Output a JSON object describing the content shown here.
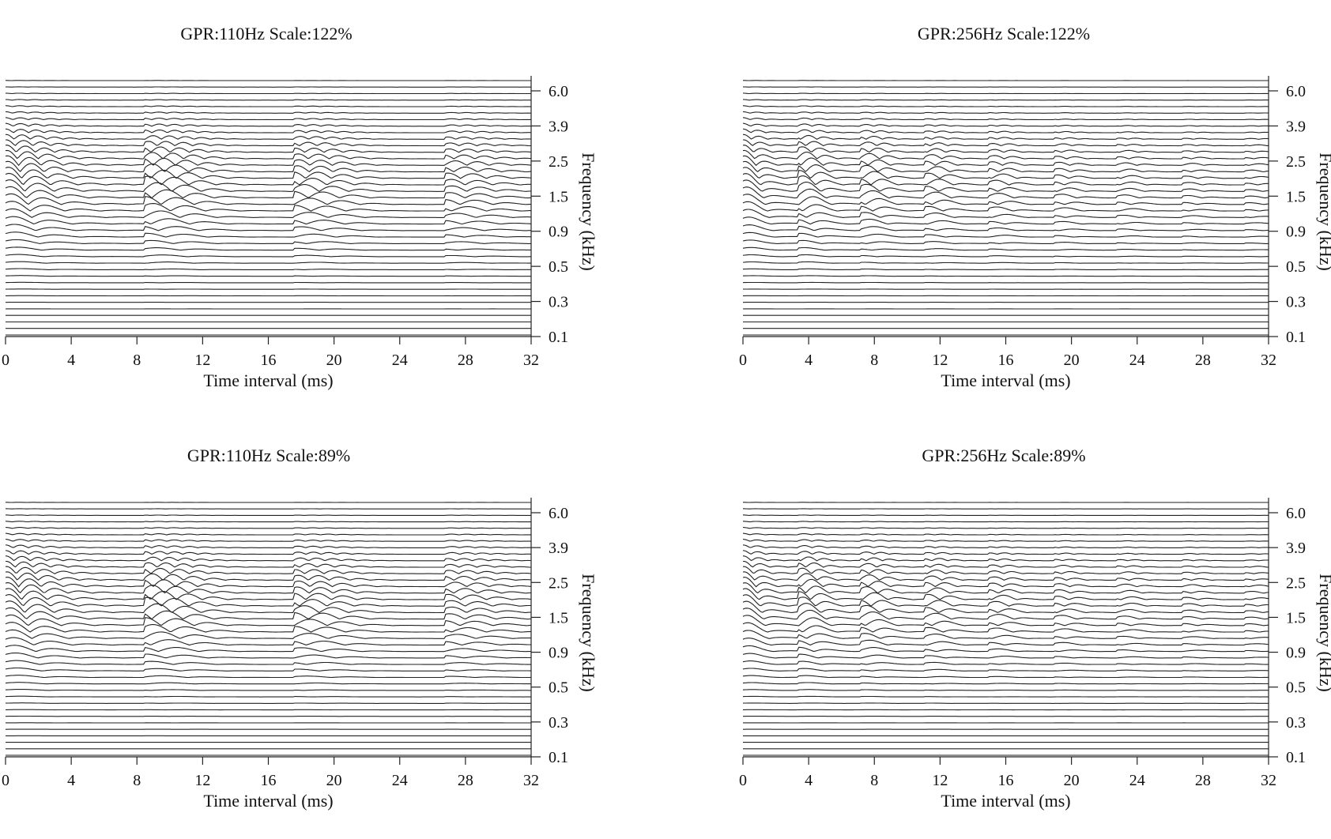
{
  "chart_data": [
    {
      "type": "line",
      "title": "GPR:110Hz Scale:122%",
      "xlabel": "Time interval (ms)",
      "ylabel": "Frequency (kHz)",
      "xlim": [
        0,
        32
      ],
      "x_ticks": [
        "0",
        "4",
        "8",
        "12",
        "16",
        "20",
        "24",
        "28",
        "32"
      ],
      "y_ticks": [
        "6.0",
        "3.9",
        "2.5",
        "1.5",
        "0.9",
        "0.5",
        "0.3",
        "0.1"
      ],
      "n_traces": 40,
      "response_band": [
        0.5,
        2.5
      ],
      "onset_ms": 0,
      "period_ms": 9.1,
      "burst_ms": [
        0,
        9.1,
        18.2,
        27.3
      ],
      "grid": false,
      "legend": "none"
    },
    {
      "type": "line",
      "title": "GPR:256Hz Scale:122%",
      "xlabel": "Time interval (ms)",
      "ylabel": "Frequency (kHz)",
      "xlim": [
        0,
        32
      ],
      "x_ticks": [
        "0",
        "4",
        "8",
        "12",
        "16",
        "20",
        "24",
        "28",
        "32"
      ],
      "y_ticks": [
        "6.0",
        "3.9",
        "2.5",
        "1.5",
        "0.9",
        "0.5",
        "0.3",
        "0.1"
      ],
      "n_traces": 40,
      "response_band": [
        0.5,
        2.5
      ],
      "onset_ms": 0,
      "period_ms": 3.9,
      "burst_ms": [
        0,
        3.9,
        7.8,
        11.7,
        15.6,
        19.5,
        23.4,
        27.3,
        31.2
      ],
      "grid": false,
      "legend": "none"
    },
    {
      "type": "line",
      "title": "GPR:110Hz Scale:89%",
      "xlabel": "Time interval (ms)",
      "ylabel": "Frequency (kHz)",
      "xlim": [
        0,
        32
      ],
      "x_ticks": [
        "0",
        "4",
        "8",
        "12",
        "16",
        "20",
        "24",
        "28",
        "32"
      ],
      "y_ticks": [
        "6.0",
        "3.9",
        "2.5",
        "1.5",
        "0.9",
        "0.5",
        "0.3",
        "0.1"
      ],
      "n_traces": 40,
      "response_band": [
        0.5,
        2.5
      ],
      "onset_ms": 0,
      "period_ms": 9.1,
      "burst_ms": [
        0,
        9.1,
        18.2,
        27.3
      ],
      "grid": false,
      "legend": "none"
    },
    {
      "type": "line",
      "title": "GPR:256Hz Scale:89%",
      "xlabel": "Time interval (ms)",
      "ylabel": "Frequency (kHz)",
      "xlim": [
        0,
        32
      ],
      "x_ticks": [
        "0",
        "4",
        "8",
        "12",
        "16",
        "20",
        "24",
        "28",
        "32"
      ],
      "y_ticks": [
        "6.0",
        "3.9",
        "2.5",
        "1.5",
        "0.9",
        "0.5",
        "0.3",
        "0.1"
      ],
      "n_traces": 40,
      "response_band": [
        0.5,
        2.5
      ],
      "onset_ms": 0,
      "period_ms": 3.9,
      "burst_ms": [
        0,
        3.9,
        7.8,
        11.7,
        15.6,
        19.5,
        23.4,
        27.3,
        31.2
      ],
      "grid": false,
      "legend": "none"
    }
  ]
}
